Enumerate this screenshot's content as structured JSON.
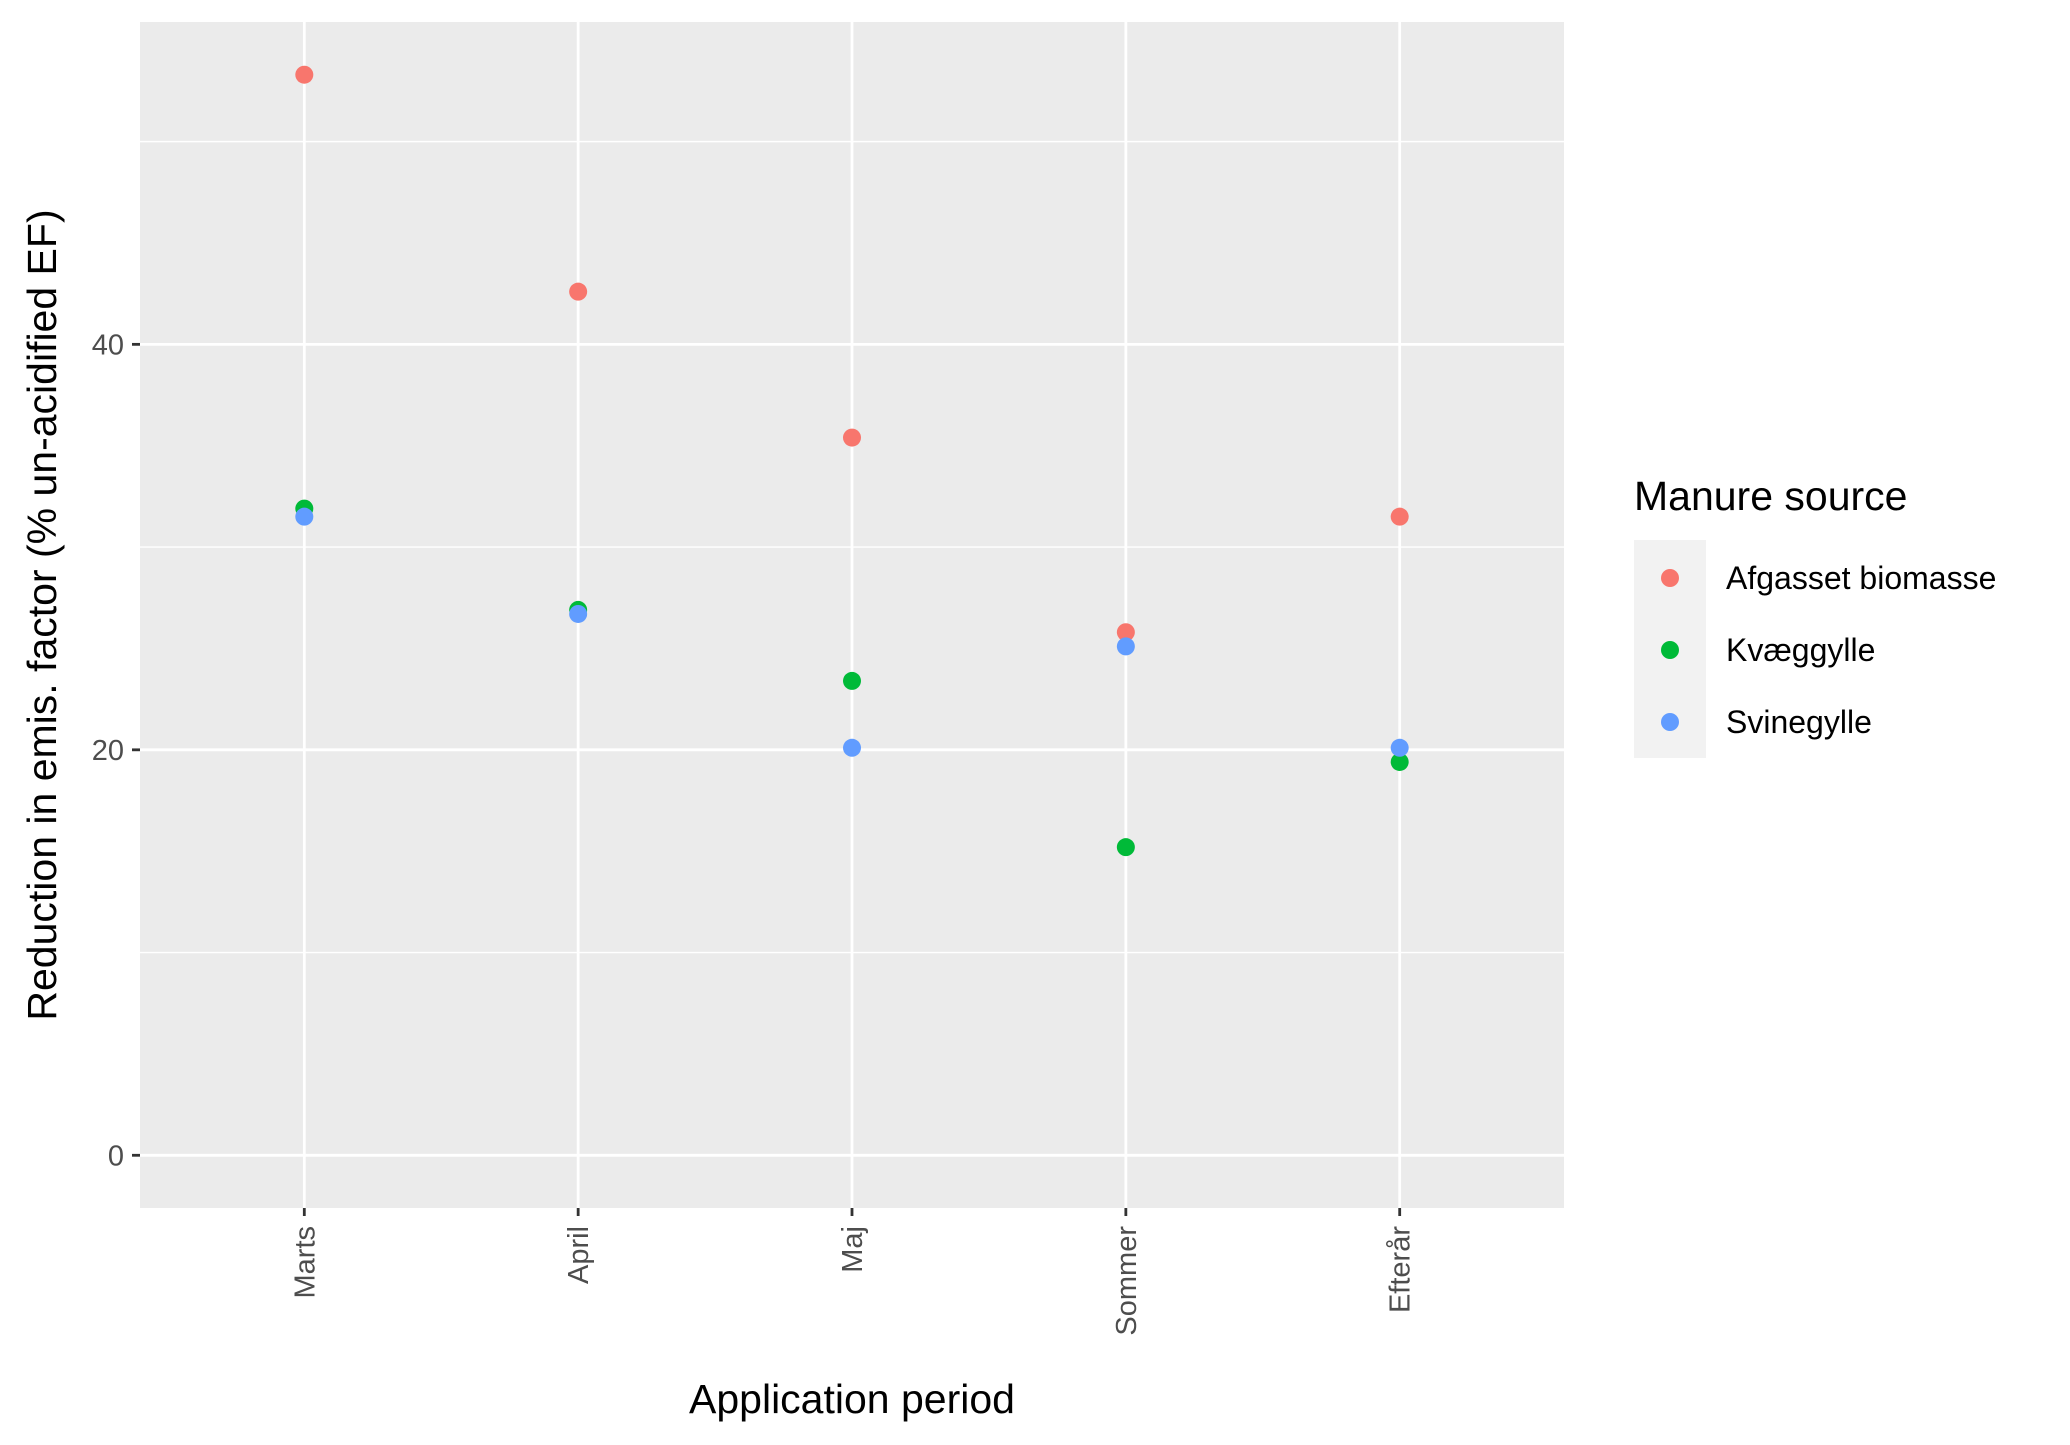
{
  "chart_data": {
    "type": "scatter",
    "title": "",
    "xlabel": "Application period",
    "ylabel": "Reduction in emis. factor (% un-acidified EF)",
    "categories": [
      "Marts",
      "April",
      "Maj",
      "Sommer",
      "Efterår"
    ],
    "yticks": [
      0,
      20,
      40
    ],
    "ylim": [
      -2.6,
      55.9
    ],
    "grid": true,
    "legend": {
      "title": "Manure source",
      "placement": "right"
    },
    "series": [
      {
        "name": "Afgasset biomasse",
        "color": "#F8766D",
        "values": [
          53.3,
          42.6,
          35.4,
          25.8,
          31.5
        ]
      },
      {
        "name": "Kvæggylle",
        "color": "#00BA38",
        "values": [
          31.9,
          26.9,
          23.4,
          15.2,
          19.4
        ]
      },
      {
        "name": "Svinegylle",
        "color": "#619CFF",
        "values": [
          31.5,
          26.7,
          20.1,
          25.1,
          20.1
        ]
      }
    ]
  }
}
